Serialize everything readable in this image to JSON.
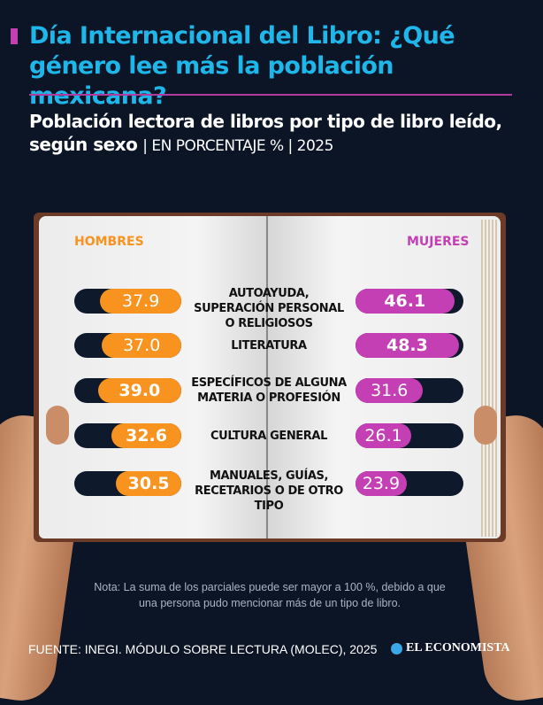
{
  "header": {
    "title": "Día Internacional del Libro: ¿Qué género lee más la población mexicana?",
    "subtitle_bold": "Población lectora de libros por tipo de libro leído, según sexo",
    "subtitle_unit": "| EN PORCENTAJE % | 2025"
  },
  "colors": {
    "men": "#f7931e",
    "women": "#c43fb3",
    "title": "#1fb6ea",
    "background": "#0b1526"
  },
  "chart_data": {
    "type": "bar",
    "orientation": "horizontal-paired",
    "title": "Población lectora de libros por tipo de libro leído, según sexo",
    "unit": "%",
    "xlim": [
      0,
      50
    ],
    "categories": [
      "AUTOAYUDA, SUPERACIÓN PERSONAL O RELIGIOSOS",
      "LITERATURA",
      "ESPECÍFICOS DE ALGUNA MATERIA O PROFESIÓN",
      "CULTURA GENERAL",
      "MANUALES, GUÍAS, RECETARIOS O DE OTRO TIPO"
    ],
    "series": [
      {
        "name": "HOMBRES",
        "values": [
          37.9,
          37.0,
          39.0,
          32.6,
          30.5
        ]
      },
      {
        "name": "MUJERES",
        "values": [
          46.1,
          48.3,
          31.6,
          26.1,
          23.9
        ]
      }
    ],
    "value_labels": {
      "men": [
        "37.9",
        "37.0",
        "39.0",
        "32.6",
        "30.5"
      ],
      "women": [
        "46.1",
        "48.3",
        "31.6",
        "26.1",
        "23.9"
      ]
    }
  },
  "footer": {
    "note": "Nota: La suma de los parciales puede ser mayor a 100 %, debido a que una persona pudo mencionar más de un tipo de libro.",
    "source": "FUENTE: INEGI. MÓDULO SOBRE LECTURA (MOLEC), 2025",
    "logo": "EL ECONOMISTA"
  }
}
